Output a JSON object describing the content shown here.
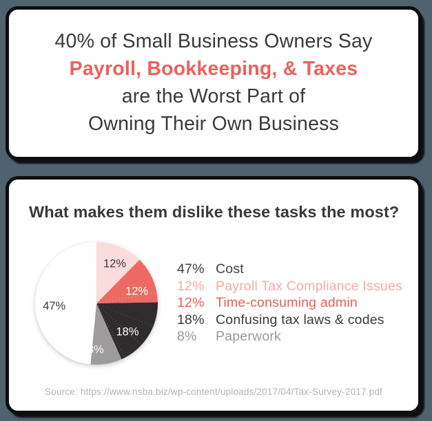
{
  "headline": {
    "line1": "40% of Small Business Owners Say",
    "line2": "Payroll, Bookkeeping, & Taxes",
    "line3": "are the Worst Part of",
    "line4": "Owning Their Own Business"
  },
  "survey": {
    "question": "What makes them dislike these tasks the most?",
    "source": "Source: https://www.nsba.biz/wp-content/uploads/2017/04/Tax-Survey-2017.pdf"
  },
  "chart_data": {
    "type": "pie",
    "title": "What makes them dislike these tasks the most?",
    "start_angle_deg": 0,
    "direction": "clockwise",
    "note": "printed percentages sum to 97; slice angles normalized to full circle",
    "slices": [
      {
        "label": "Payroll Tax Compliance Issues",
        "value": 12,
        "display": "12%",
        "color": "#fadcdc",
        "label_color": "#3a393b"
      },
      {
        "label": "Time-consuming admin",
        "value": 12,
        "display": "12%",
        "color": "#ec6a63",
        "label_color": "#ffffff"
      },
      {
        "label": "Confusing tax laws & codes",
        "value": 18,
        "display": "18%",
        "color": "#2e2c2d",
        "label_color": "#ffffff"
      },
      {
        "label": "Paperwork",
        "value": 8,
        "display": "8%",
        "color": "#9d9b9c",
        "label_color": "#ffffff"
      },
      {
        "label": "Cost",
        "value": 47,
        "display": "47%",
        "color": "#ffffff",
        "label_color": "#3a393b"
      }
    ]
  },
  "legend": {
    "rows": [
      {
        "pct": "47%",
        "label": "Cost",
        "color": "#403e40"
      },
      {
        "pct": "12%",
        "label": "Payroll Tax Compliance Issues",
        "color": "#f5aaa7"
      },
      {
        "pct": "12%",
        "label": "Time-consuming admin",
        "color": "#ea5f58"
      },
      {
        "pct": "18%",
        "label": "Confusing tax laws & codes",
        "color": "#3b393b"
      },
      {
        "pct": "8%",
        "label": "Paperwork",
        "color": "#9b999a"
      }
    ]
  },
  "colors": {
    "page_background": "#4e636e",
    "card_background": "#ffffff",
    "card_border": "#0e0e10",
    "accent_coral": "#ea625c",
    "dark_text": "#3a393b",
    "source_gray": "#b3b3b3"
  }
}
